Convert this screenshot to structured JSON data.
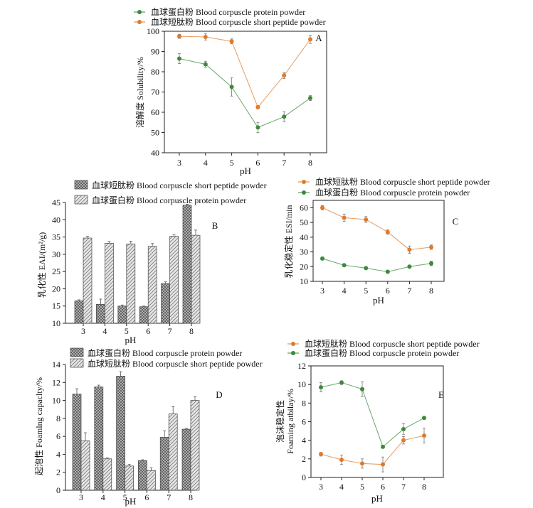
{
  "chart_data": [
    {
      "panel": "A",
      "type": "line",
      "xlabel": "pH",
      "ylabel": "溶解度  Solubility/%",
      "x": [
        3,
        4,
        5,
        6,
        7,
        8
      ],
      "ylim": [
        40,
        100
      ],
      "yticks": [
        40,
        50,
        60,
        70,
        80,
        90,
        100
      ],
      "legend_position": "top",
      "series": [
        {
          "name": "血球蛋白粉  Blood corpuscle protein powder",
          "color": "#3a8a3a",
          "marker": "dot",
          "values": [
            86.5,
            83.7,
            72.5,
            52.5,
            57.8,
            67.0
          ],
          "errors": [
            2.5,
            1.5,
            4.5,
            2.5,
            2.5,
            1.2
          ]
        },
        {
          "name": "血球短肽粉  Blood corpuscle short peptide powder",
          "color": "#e07a2a",
          "marker": "dot",
          "values": [
            97.5,
            97.2,
            95.0,
            62.5,
            78.2,
            96.0
          ],
          "errors": [
            1.0,
            1.5,
            1.2,
            0.8,
            1.5,
            2.0
          ]
        }
      ]
    },
    {
      "panel": "B",
      "type": "bar",
      "xlabel": "pH",
      "ylabel": "乳化性  EAI/(m²/g)",
      "categories": [
        "3",
        "4",
        "5",
        "6",
        "7",
        "8"
      ],
      "ylim": [
        10,
        45
      ],
      "yticks": [
        10,
        15,
        20,
        25,
        30,
        35,
        40,
        45
      ],
      "legend_position": "top",
      "series": [
        {
          "name": "血球短肽粉  Blood corpuscle short peptide powder",
          "pattern": "crosshatch",
          "values": [
            16.5,
            15.5,
            15.0,
            14.8,
            21.5,
            44.2
          ],
          "errors": [
            0.3,
            1.5,
            0.3,
            0.2,
            0.5,
            0.3
          ]
        },
        {
          "name": "血球蛋白粉  Blood corpuscle protein powder",
          "pattern": "diagonal",
          "values": [
            34.7,
            33.2,
            33.0,
            32.3,
            35.2,
            35.5
          ],
          "errors": [
            0.5,
            0.5,
            0.8,
            0.8,
            0.5,
            1.5
          ]
        }
      ]
    },
    {
      "panel": "C",
      "type": "line",
      "xlabel": "pH",
      "ylabel": "乳化稳定性  ESI/min",
      "x": [
        3,
        4,
        5,
        6,
        7,
        8
      ],
      "ylim": [
        10,
        65
      ],
      "yticks": [
        10,
        20,
        30,
        40,
        50,
        60
      ],
      "legend_position": "top",
      "series": [
        {
          "name": "血球短肽粉  Blood corpuscle short peptide powder",
          "color": "#e07a2a",
          "marker": "dot",
          "values": [
            60.0,
            53.2,
            52.0,
            43.5,
            31.5,
            33.2
          ],
          "errors": [
            1.5,
            2.5,
            2.0,
            1.5,
            2.5,
            1.5
          ]
        },
        {
          "name": "血球蛋白粉  Blood corpuscle protein powder",
          "color": "#3a8a3a",
          "marker": "dot",
          "values": [
            25.5,
            21.0,
            19.0,
            16.5,
            20.0,
            22.2
          ],
          "errors": [
            0.5,
            0.5,
            0.5,
            0.5,
            0.5,
            1.5
          ]
        }
      ]
    },
    {
      "panel": "D",
      "type": "bar",
      "xlabel": "pH",
      "ylabel": "起泡性  Foamlng capaclty/%",
      "categories": [
        "3",
        "4",
        "5",
        "6",
        "7",
        "8"
      ],
      "ylim": [
        0,
        14
      ],
      "yticks": [
        0,
        2,
        4,
        6,
        8,
        10,
        12,
        14
      ],
      "legend_position": "top",
      "series": [
        {
          "name": "血球蛋白粉  Blood corpuscle protein powder",
          "pattern": "crosshatch",
          "values": [
            10.7,
            11.5,
            12.7,
            3.3,
            5.9,
            6.8
          ],
          "errors": [
            0.6,
            0.2,
            0.5,
            0.1,
            0.7,
            0.1
          ]
        },
        {
          "name": "血球短肽粉  Blood corpuscle short peptide powder",
          "pattern": "diagonal",
          "values": [
            5.5,
            3.5,
            2.7,
            2.2,
            8.5,
            10.0
          ],
          "errors": [
            0.9,
            0.1,
            0.2,
            0.3,
            0.8,
            0.4
          ]
        }
      ]
    },
    {
      "panel": "E",
      "type": "line",
      "xlabel": "pH",
      "ylabel_lines": [
        "泡沫稳定性",
        "Foaming atbilay/%"
      ],
      "x": [
        3,
        4,
        5,
        6,
        7,
        8
      ],
      "ylim": [
        0,
        12
      ],
      "yticks": [
        0,
        2,
        4,
        6,
        8,
        10,
        12
      ],
      "legend_position": "top",
      "series": [
        {
          "name": "血球短肽粉  Blood corpuscle short peptide powder",
          "color": "#e07a2a",
          "marker": "dot",
          "values": [
            2.5,
            1.9,
            1.5,
            1.4,
            4.0,
            4.5
          ],
          "errors": [
            0.2,
            0.5,
            0.5,
            0.8,
            0.4,
            0.8
          ]
        },
        {
          "name": "血球蛋白粉  Blood corpuscle protein powder",
          "color": "#3a8a3a",
          "marker": "dot",
          "values": [
            9.7,
            10.2,
            9.5,
            3.3,
            5.2,
            6.4
          ],
          "errors": [
            0.5,
            0.2,
            0.8,
            0.1,
            0.6,
            0.1
          ]
        }
      ]
    }
  ]
}
